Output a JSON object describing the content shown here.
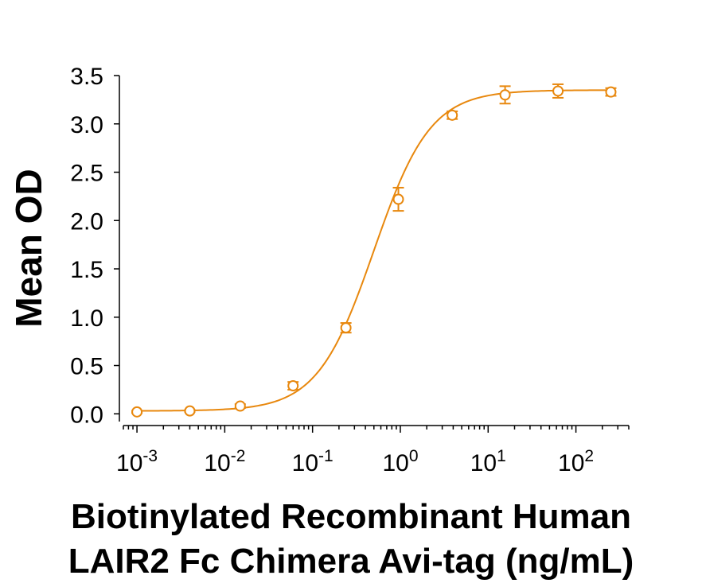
{
  "chart_data": {
    "type": "scatter",
    "title": "",
    "ylabel": "Mean OD",
    "xlabel_lines": [
      "Biotinylated Recombinant Human",
      "LAIR2 Fc Chimera Avi-tag (ng/mL)"
    ],
    "x_scale": "log",
    "xlim": [
      0.0007,
      400
    ],
    "ylim": [
      -0.08,
      3.5
    ],
    "y_ticks": [
      "0.0",
      "0.5",
      "1.0",
      "1.5",
      "2.0",
      "2.5",
      "3.0",
      "3.5"
    ],
    "x_ticks": [
      {
        "base": "10",
        "exp": "-3"
      },
      {
        "base": "10",
        "exp": "-2"
      },
      {
        "base": "10",
        "exp": "-1"
      },
      {
        "base": "10",
        "exp": "0"
      },
      {
        "base": "10",
        "exp": "1"
      },
      {
        "base": "10",
        "exp": "2"
      }
    ],
    "color": "#E8880E",
    "series": [
      {
        "x": [
          0.001,
          0.004,
          0.015,
          0.06,
          0.24,
          0.95,
          3.9,
          15.6,
          62.5,
          250
        ],
        "y": [
          0.02,
          0.03,
          0.08,
          0.29,
          0.89,
          2.22,
          3.09,
          3.3,
          3.34,
          3.33
        ],
        "err": [
          0.01,
          0.01,
          0.02,
          0.04,
          0.05,
          0.12,
          0.04,
          0.09,
          0.07,
          0.04
        ],
        "fit": {
          "model": "4PL",
          "bottom": 0.03,
          "top": 3.35,
          "ec50": 0.5,
          "hill": 1.35
        }
      }
    ]
  }
}
